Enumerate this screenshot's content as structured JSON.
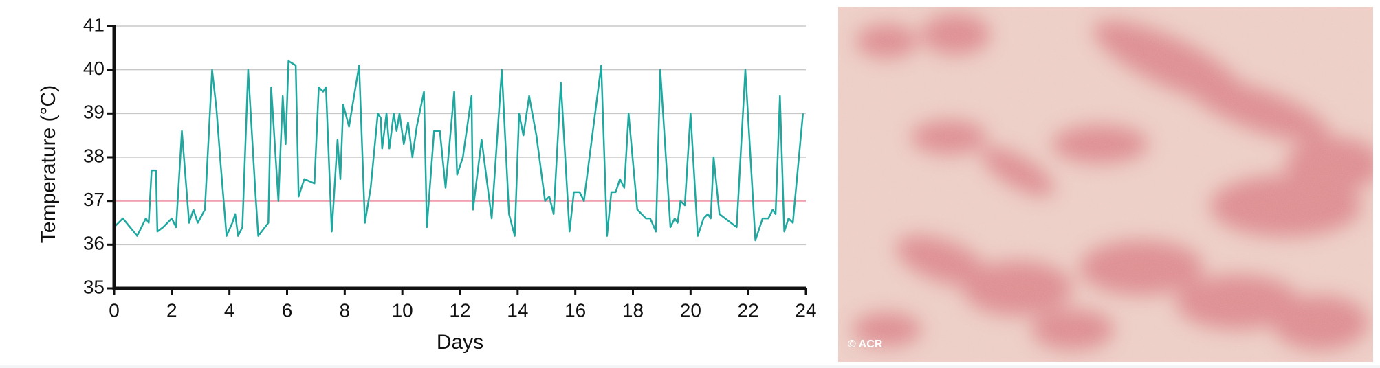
{
  "chart_data": {
    "type": "line",
    "x_label": "Days",
    "y_label": "Temperature (°C)",
    "xlim": [
      0,
      24
    ],
    "xticks": [
      0,
      2,
      4,
      6,
      8,
      10,
      12,
      14,
      16,
      18,
      20,
      22,
      24
    ],
    "ylim": [
      35,
      41
    ],
    "yticks": [
      35,
      36,
      37,
      38,
      39,
      40,
      41
    ],
    "grid": true,
    "reference_line": 37,
    "reference_color": "#f2a3b3",
    "series": [
      {
        "color": "#1fa8a0",
        "x": [
          0,
          0.3,
          0.8,
          1.1,
          1.2,
          1.3,
          1.45,
          1.5,
          1.7,
          2.0,
          2.15,
          2.35,
          2.6,
          2.75,
          2.9,
          3.15,
          3.4,
          3.55,
          3.7,
          3.9,
          4.1,
          4.2,
          4.3,
          4.45,
          4.65,
          4.9,
          5.0,
          5.35,
          5.45,
          5.7,
          5.85,
          5.95,
          6.05,
          6.3,
          6.4,
          6.6,
          6.95,
          7.1,
          7.25,
          7.35,
          7.55,
          7.75,
          7.85,
          7.95,
          8.15,
          8.5,
          8.7,
          8.9,
          9.15,
          9.25,
          9.3,
          9.45,
          9.55,
          9.7,
          9.8,
          9.9,
          10.05,
          10.2,
          10.35,
          10.5,
          10.75,
          10.85,
          11.1,
          11.3,
          11.5,
          11.8,
          11.9,
          12.1,
          12.4,
          12.45,
          12.75,
          13.1,
          13.45,
          13.7,
          13.9,
          14.05,
          14.2,
          14.4,
          14.65,
          14.95,
          15.1,
          15.25,
          15.5,
          15.8,
          15.95,
          16.15,
          16.3,
          16.9,
          17.1,
          17.25,
          17.4,
          17.55,
          17.7,
          17.85,
          18.15,
          18.45,
          18.6,
          18.8,
          18.95,
          19.3,
          19.45,
          19.55,
          19.65,
          19.8,
          20.0,
          20.25,
          20.45,
          20.6,
          20.7,
          20.8,
          21.0,
          21.2,
          21.6,
          21.9,
          22.25,
          22.5,
          22.7,
          22.85,
          22.95,
          23.1,
          23.25,
          23.4,
          23.55,
          23.9
        ],
        "values": [
          36.4,
          36.6,
          36.2,
          36.6,
          36.5,
          37.7,
          37.7,
          36.3,
          36.4,
          36.6,
          36.4,
          38.6,
          36.5,
          36.8,
          36.5,
          36.8,
          40.0,
          39.1,
          37.8,
          36.2,
          36.5,
          36.7,
          36.2,
          36.4,
          40.0,
          37.2,
          36.2,
          36.5,
          39.6,
          37.0,
          39.4,
          38.3,
          40.2,
          40.1,
          37.1,
          37.5,
          37.4,
          39.6,
          39.5,
          39.6,
          36.3,
          38.4,
          37.5,
          39.2,
          38.7,
          40.1,
          36.5,
          37.3,
          39.0,
          38.9,
          38.2,
          39.0,
          38.2,
          39.0,
          38.6,
          39.0,
          38.3,
          38.8,
          38.0,
          38.7,
          39.5,
          36.4,
          38.6,
          38.6,
          37.3,
          39.5,
          37.6,
          38.0,
          39.4,
          36.8,
          38.4,
          36.6,
          40.0,
          36.7,
          36.2,
          39.0,
          38.5,
          39.4,
          38.5,
          37.0,
          37.1,
          36.7,
          39.7,
          36.3,
          37.2,
          37.2,
          37.0,
          40.1,
          36.2,
          37.2,
          37.2,
          37.5,
          37.3,
          39.0,
          36.8,
          36.6,
          36.6,
          36.3,
          40.0,
          36.4,
          36.6,
          36.5,
          37.0,
          36.9,
          39.0,
          36.2,
          36.6,
          36.7,
          36.6,
          38.0,
          36.7,
          36.6,
          36.4,
          40.0,
          36.1,
          36.6,
          36.6,
          36.8,
          36.7,
          39.4,
          36.3,
          36.6,
          36.5,
          39.0
        ]
      }
    ]
  },
  "photo": {
    "credit": "© ACR"
  }
}
